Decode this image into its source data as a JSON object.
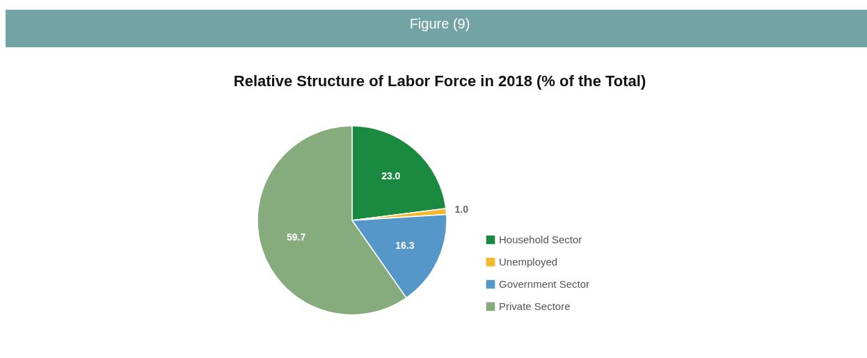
{
  "chart_data": {
    "type": "pie",
    "title": "Figure (9)",
    "subtitle": "Relative Structure of Labor Force in 2018 (% of the Total)",
    "categories": [
      "Household Sector",
      "Unemployed",
      "Government Sector",
      "Private Sectore"
    ],
    "values": [
      23.0,
      1.0,
      16.3,
      59.7
    ],
    "colors": [
      "#1a8a40",
      "#f5b82a",
      "#5497c8",
      "#86ab7c"
    ],
    "value_labels": [
      "23.0",
      "1.0",
      "16.3",
      "59.7"
    ],
    "legend": "right"
  }
}
